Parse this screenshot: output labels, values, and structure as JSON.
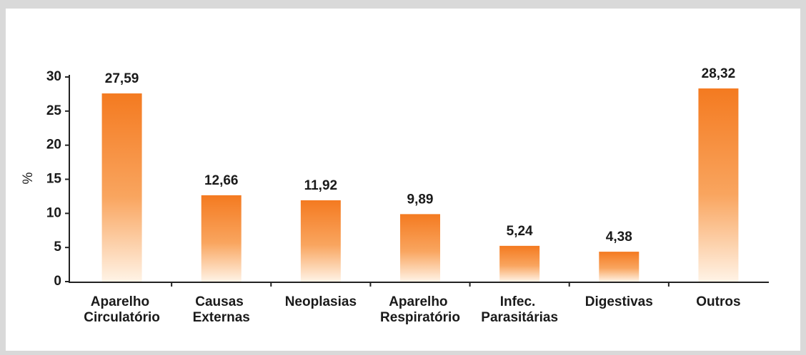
{
  "chart_data": {
    "type": "bar",
    "categories": [
      "Aparelho Circulatório",
      "Causas Externas",
      "Neoplasias",
      "Aparelho Respiratório",
      "Infec. Parasitárias",
      "Digestivas",
      "Outros"
    ],
    "values": [
      27.59,
      12.66,
      11.92,
      9.89,
      5.24,
      4.38,
      28.32
    ],
    "value_labels": [
      "27,59",
      "12,66",
      "11,92",
      "9,89",
      "5,24",
      "4,38",
      "28,32"
    ],
    "y_label": "%",
    "color": "#f47a20",
    "ylim": [
      0,
      30
    ],
    "yticks": [
      0,
      5,
      10,
      15,
      20,
      25,
      30
    ],
    "grid": false
  }
}
